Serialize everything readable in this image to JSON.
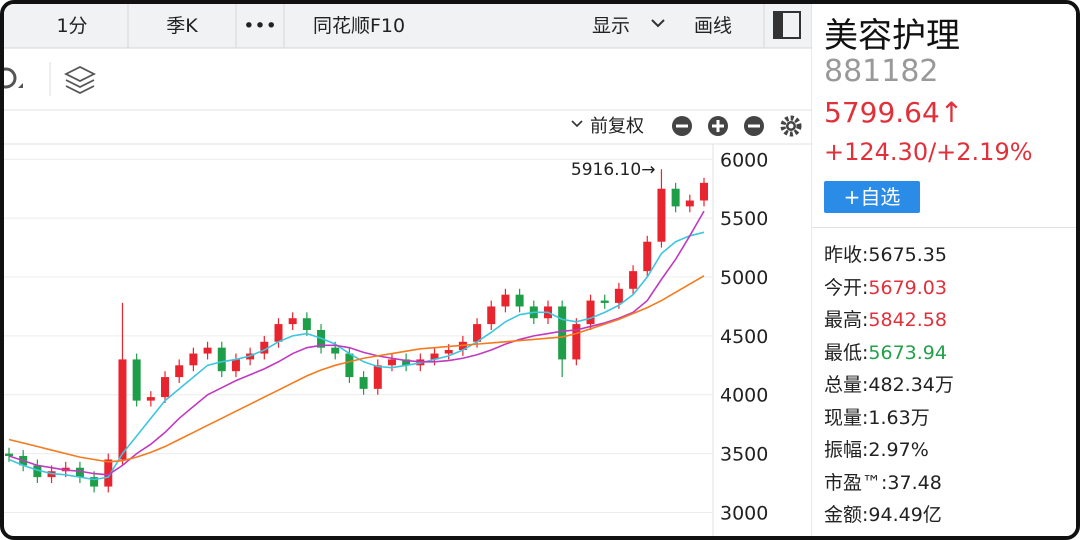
{
  "toolbar": {
    "tabs": [
      "1分",
      "季K",
      "•••",
      "同花顺F10"
    ],
    "display": "显示",
    "draw": "画线"
  },
  "panel": {
    "name": "美容护理",
    "code": "881182",
    "price": "5799.64↑",
    "change": "+124.30/+2.19%",
    "watch_button": "+自选",
    "stats": [
      {
        "label": "昨收:",
        "value": "5675.35",
        "color": "#222222"
      },
      {
        "label": "今开:",
        "value": "5679.03",
        "color": "#e0313b"
      },
      {
        "label": "最高:",
        "value": "5842.58",
        "color": "#e0313b"
      },
      {
        "label": "最低:",
        "value": "5673.94",
        "color": "#23a04a"
      },
      {
        "label": "总量:",
        "value": "482.34万",
        "color": "#222222"
      },
      {
        "label": "现量:",
        "value": "1.63万",
        "color": "#222222"
      },
      {
        "label": "振幅:",
        "value": "2.97%",
        "color": "#222222"
      },
      {
        "label": "市盈™:",
        "value": "37.48",
        "color": "#222222"
      },
      {
        "label": "金额:",
        "value": "94.49亿",
        "color": "#222222"
      }
    ]
  },
  "chart_data": {
    "type": "candlestick",
    "adjust_label": "前复权",
    "up_color": "#e8242e",
    "down_color": "#1e9e48",
    "ylim": [
      2800,
      6130
    ],
    "yticks": [
      3000,
      3500,
      4000,
      4500,
      5000,
      5500,
      6000
    ],
    "grid": true,
    "max_label": {
      "index": 46,
      "value": 5916.1,
      "label": "5916.10→"
    },
    "open": [
      3500,
      3480,
      3400,
      3300,
      3350,
      3380,
      3300,
      3220,
      3450,
      4300,
      3950,
      3980,
      4150,
      4250,
      4350,
      4400,
      4200,
      4300,
      4350,
      4450,
      4600,
      4650,
      4550,
      4400,
      4350,
      4150,
      4050,
      4250,
      4300,
      4250,
      4300,
      4350,
      4380,
      4450,
      4600,
      4750,
      4850,
      4750,
      4650,
      4750,
      4300,
      4600,
      4800,
      4780,
      4900,
      5050,
      5300,
      5750,
      5600,
      5650
    ],
    "high": [
      3550,
      3530,
      3450,
      3400,
      3430,
      3430,
      3350,
      3500,
      4780,
      4350,
      4030,
      4200,
      4300,
      4400,
      4450,
      4450,
      4350,
      4400,
      4500,
      4650,
      4700,
      4700,
      4600,
      4450,
      4400,
      4200,
      4300,
      4350,
      4350,
      4350,
      4400,
      4430,
      4500,
      4650,
      4800,
      4900,
      4900,
      4800,
      4800,
      4800,
      4650,
      4850,
      4850,
      4950,
      5100,
      5350,
      5916.1,
      5800,
      5700,
      5842.58
    ],
    "low": [
      3430,
      3350,
      3250,
      3250,
      3300,
      3250,
      3170,
      3170,
      3400,
      3900,
      3900,
      3930,
      4100,
      4200,
      4300,
      4150,
      4150,
      4250,
      4300,
      4400,
      4550,
      4500,
      4350,
      4300,
      4100,
      4000,
      4000,
      4200,
      4200,
      4200,
      4250,
      4300,
      4330,
      4400,
      4550,
      4700,
      4700,
      4600,
      4600,
      4150,
      4250,
      4550,
      4730,
      4730,
      4850,
      5000,
      5250,
      5550,
      5550,
      5600
    ],
    "close": [
      3480,
      3400,
      3300,
      3350,
      3380,
      3300,
      3220,
      3450,
      4300,
      3950,
      3980,
      4150,
      4250,
      4350,
      4400,
      4200,
      4300,
      4350,
      4450,
      4600,
      4650,
      4550,
      4400,
      4350,
      4150,
      4050,
      4250,
      4300,
      4250,
      4300,
      4350,
      4380,
      4450,
      4600,
      4750,
      4850,
      4750,
      4650,
      4750,
      4300,
      4600,
      4800,
      4780,
      4900,
      5050,
      5300,
      5750,
      5600,
      5650,
      5800
    ],
    "lines": [
      {
        "color": "#3ec6e0",
        "values": [
          3450,
          3400,
          3360,
          3330,
          3320,
          3300,
          3280,
          3300,
          3500,
          3650,
          3800,
          3950,
          4050,
          4150,
          4250,
          4280,
          4300,
          4330,
          4380,
          4450,
          4500,
          4520,
          4480,
          4430,
          4350,
          4280,
          4240,
          4230,
          4250,
          4270,
          4300,
          4330,
          4380,
          4450,
          4530,
          4620,
          4680,
          4700,
          4700,
          4640,
          4620,
          4650,
          4700,
          4760,
          4850,
          5000,
          5200,
          5300,
          5350,
          5380
        ]
      },
      {
        "color": "#c03ac0",
        "values": [
          3480,
          3440,
          3400,
          3380,
          3360,
          3350,
          3330,
          3320,
          3400,
          3500,
          3580,
          3680,
          3800,
          3900,
          4000,
          4060,
          4120,
          4170,
          4220,
          4280,
          4350,
          4400,
          4420,
          4420,
          4400,
          4360,
          4330,
          4310,
          4290,
          4280,
          4280,
          4290,
          4310,
          4340,
          4380,
          4430,
          4470,
          4500,
          4520,
          4540,
          4550,
          4580,
          4610,
          4650,
          4700,
          4800,
          4980,
          5150,
          5350,
          5560
        ]
      },
      {
        "color": "#f57a1f",
        "values": [
          3620,
          3590,
          3560,
          3530,
          3500,
          3470,
          3450,
          3430,
          3440,
          3470,
          3510,
          3560,
          3620,
          3680,
          3740,
          3800,
          3860,
          3920,
          3980,
          4040,
          4100,
          4160,
          4210,
          4250,
          4280,
          4310,
          4330,
          4350,
          4370,
          4390,
          4400,
          4410,
          4420,
          4430,
          4440,
          4450,
          4460,
          4470,
          4480,
          4490,
          4520,
          4560,
          4600,
          4640,
          4690,
          4740,
          4800,
          4870,
          4940,
          5010
        ]
      }
    ]
  }
}
